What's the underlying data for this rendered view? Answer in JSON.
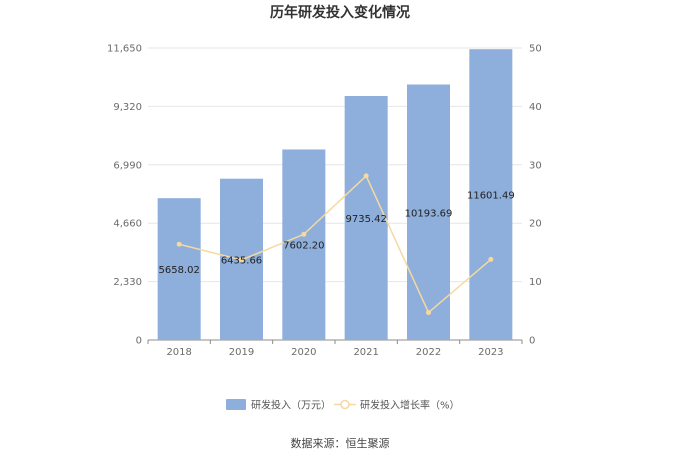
{
  "chart_data": {
    "type": "bar",
    "title": "历年研发投入变化情况",
    "categories": [
      "2018",
      "2019",
      "2020",
      "2021",
      "2022",
      "2023"
    ],
    "series": [
      {
        "name": "研发投入（万元）",
        "type": "bar",
        "axis": "left",
        "values": [
          5658.02,
          6435.66,
          7602.2,
          9735.42,
          10193.69,
          11601.49
        ],
        "labels": [
          "5658.02",
          "6435.66",
          "7602.20",
          "9735.42",
          "10193.69",
          "11601.49"
        ],
        "color": "#8eaedb"
      },
      {
        "name": "研发投入增长率（%）",
        "type": "line",
        "axis": "right",
        "values": [
          16.4,
          13.7,
          18.1,
          28.1,
          4.7,
          13.8
        ],
        "color": "#f5d9a0"
      }
    ],
    "y_left": {
      "min": 0,
      "max": 11650,
      "ticks": [
        "0",
        "2,330",
        "4,660",
        "6,990",
        "9,320",
        "11,650"
      ]
    },
    "y_right": {
      "min": 0,
      "max": 50,
      "ticks": [
        "0",
        "10",
        "20",
        "30",
        "40",
        "50"
      ]
    },
    "grid": true,
    "legend_position": "bottom"
  },
  "source_text": "数据来源：恒生聚源"
}
